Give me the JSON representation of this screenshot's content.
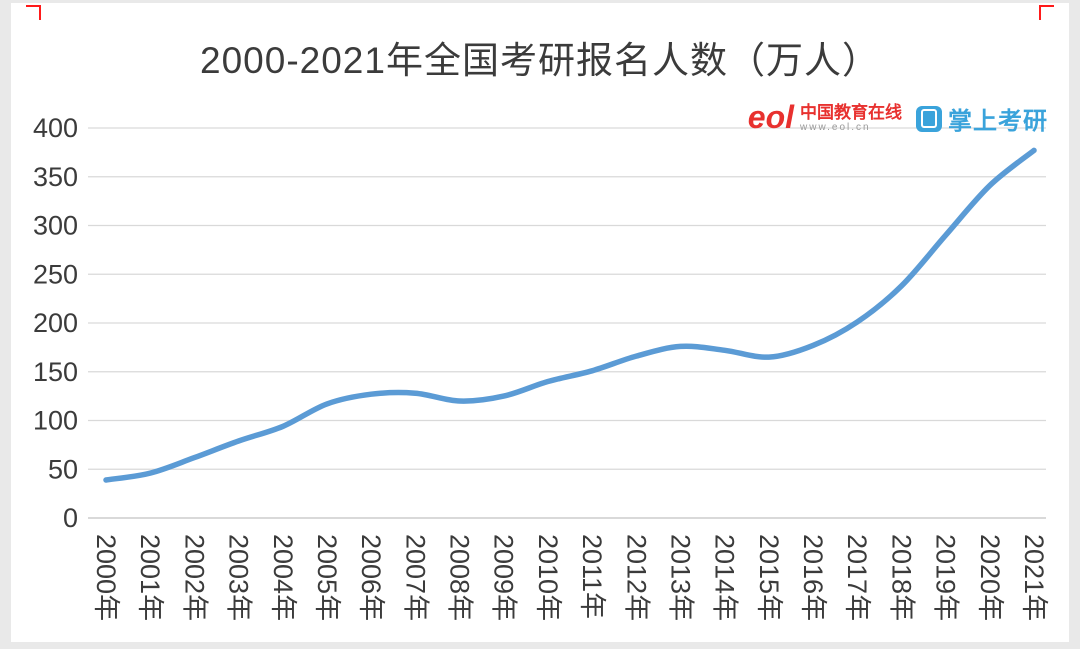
{
  "page": {
    "title": "2000-2021年全国考研报名人数（万人）"
  },
  "watermarks": {
    "eol_logo_text": "eol",
    "eol_name": "中国教育在线",
    "eol_url": "www.eol.cn",
    "zsky_name": "掌上考研"
  },
  "chart_data": {
    "type": "line",
    "title": "2000-2021年全国考研报名人数（万人）",
    "x": [
      "2000年",
      "2001年",
      "2002年",
      "2003年",
      "2004年",
      "2005年",
      "2006年",
      "2007年",
      "2008年",
      "2009年",
      "2010年",
      "2011年",
      "2012年",
      "2013年",
      "2014年",
      "2015年",
      "2016年",
      "2017年",
      "2018年",
      "2019年",
      "2020年",
      "2021年"
    ],
    "values": [
      39,
      46,
      62,
      79,
      94,
      117,
      127,
      128,
      120,
      125,
      140,
      151,
      166,
      176,
      172,
      165,
      177,
      201,
      238,
      290,
      341,
      377
    ],
    "xlabel": "",
    "ylabel": "",
    "ylim": [
      0,
      400
    ],
    "ytick_step": 50,
    "grid": "horizontal",
    "legend": "none",
    "line_color": "#5b9bd5",
    "gridline_color": "#d9d9d9"
  }
}
